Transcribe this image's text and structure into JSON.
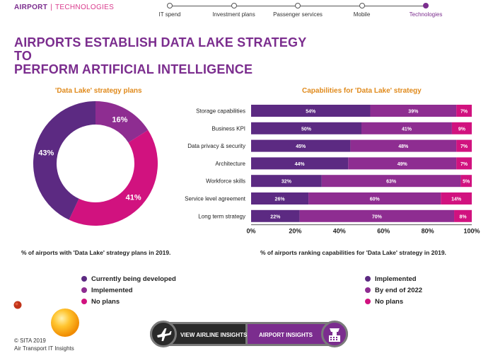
{
  "breadcrumb": {
    "section": "AIRPORT",
    "separator": "|",
    "subsection": "TECHNOLOGIES"
  },
  "timeline": [
    {
      "label": "IT spend",
      "active": false
    },
    {
      "label": "Investment plans",
      "active": false
    },
    {
      "label": "Passenger services",
      "active": false
    },
    {
      "label": "Mobile",
      "active": false
    },
    {
      "label": "Technologies",
      "active": true
    }
  ],
  "title_line1": "AIRPORTS ESTABLISH DATA LAKE STRATEGY TO",
  "title_line2": "PERFORM ARTIFICIAL INTELLIGENCE",
  "colors": {
    "developing": "#5c2a82",
    "implemented": "#8e2d91",
    "no_plans": "#d1127f",
    "accent": "#e08a1c"
  },
  "chart_data": [
    {
      "type": "pie",
      "title": "'Data Lake' strategy plans",
      "categories": [
        "Currently being developed",
        "Implemented",
        "No plans"
      ],
      "values": [
        43,
        16,
        41
      ],
      "value_labels": [
        "43%",
        "16%",
        "41%"
      ],
      "note": "% of airports with 'Data Lake' strategy plans in 2019."
    },
    {
      "type": "bar",
      "orientation": "horizontal",
      "stacked": true,
      "title": "Capabilities for 'Data Lake' strategy",
      "categories": [
        "Storage capabilities",
        "Business KPI",
        "Data privacy & security",
        "Architecture",
        "Workforce skills",
        "Service level agreement",
        "Long term strategy"
      ],
      "series": [
        {
          "name": "Implemented",
          "values": [
            54,
            50,
            45,
            44,
            32,
            26,
            22
          ],
          "labels": [
            "54%",
            "50%",
            "45%",
            "44%",
            "32%",
            "26%",
            "22%"
          ]
        },
        {
          "name": "By end of 2022",
          "values": [
            39,
            41,
            48,
            49,
            63,
            60,
            70
          ],
          "labels": [
            "39%",
            "41%",
            "48%",
            "49%",
            "63%",
            "60%",
            "70%"
          ]
        },
        {
          "name": "No plans",
          "values": [
            7,
            9,
            7,
            7,
            5,
            14,
            8
          ],
          "labels": [
            "7%",
            "9%",
            "7%",
            "7%",
            "5%",
            "14%",
            "8%"
          ]
        }
      ],
      "xticks": [
        "0%",
        "20%",
        "40%",
        "60%",
        "80%",
        "100%"
      ],
      "xlim": [
        0,
        100
      ],
      "note": "% of airports ranking capabilities for 'Data Lake' strategy in 2019."
    }
  ],
  "donut_legend": [
    "Currently being developed",
    "Implemented",
    "No plans"
  ],
  "bar_legend": [
    "Implemented",
    "By end of 2022",
    "No plans"
  ],
  "footer": {
    "copyright": "© SITA 2019",
    "org": "Air Transport IT Insights"
  },
  "buttons": {
    "airline": "VIEW AIRLINE INSIGHTS",
    "airport": "AIRPORT INSIGHTS"
  },
  "icons": {
    "airline": "airplane-icon",
    "airport": "control-tower-icon"
  }
}
